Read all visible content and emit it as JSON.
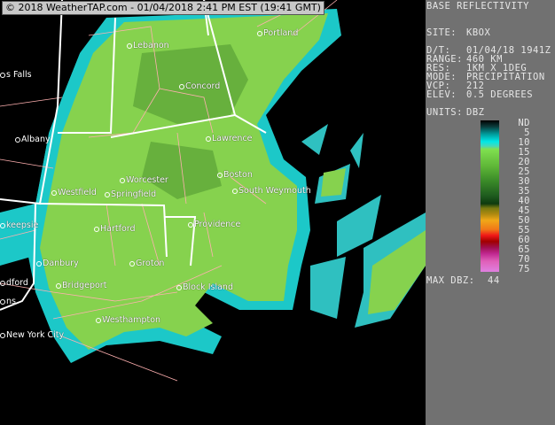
{
  "header": {
    "timestamp": "© 2018 WeatherTAP.com - 01/04/2018  2:41 PM EST (19:41 GMT)"
  },
  "map": {
    "cities": [
      "s Falls",
      "Lebanon",
      "Portland",
      "Concord",
      "Albany",
      "Lawrence",
      "Worcester",
      "Boston",
      "Westfield",
      "Springfield",
      "South Weymouth",
      "keepsie",
      "Hartford",
      "Providence",
      "Danbury",
      "Groton",
      "dford",
      "Bridgeport",
      "Block Island",
      "ns",
      "Westhampton",
      "New York City"
    ]
  },
  "panel": {
    "title": "BASE REFLECTIVITY",
    "site_label": "SITE:",
    "site": "KBOX",
    "dt_label": "D/T:",
    "dt": "01/04/18 1941Z",
    "range_label": "RANGE:",
    "range": "460 KM",
    "res_label": "RES:",
    "res": "1KM X 1DEG",
    "mode_label": "MODE:",
    "mode": "PRECIPITATION",
    "vcp_label": "VCP:",
    "vcp": "212",
    "elev_label": "ELEV:",
    "elev": "0.5 DEGREES",
    "units_label": "UNITS:",
    "units": "DBZ",
    "legend_ticks": [
      "ND",
      "5",
      "10",
      "15",
      "20",
      "25",
      "30",
      "35",
      "40",
      "45",
      "50",
      "55",
      "60",
      "65",
      "70",
      "75"
    ],
    "max_label": "MAX DBZ:",
    "max": "44"
  },
  "colors": {
    "background": "#000000",
    "panel": "#717171",
    "cyan": "#00e0e0",
    "green": "#88d850",
    "state_line": "#ffffff",
    "county_line": "#ffb0b0"
  }
}
